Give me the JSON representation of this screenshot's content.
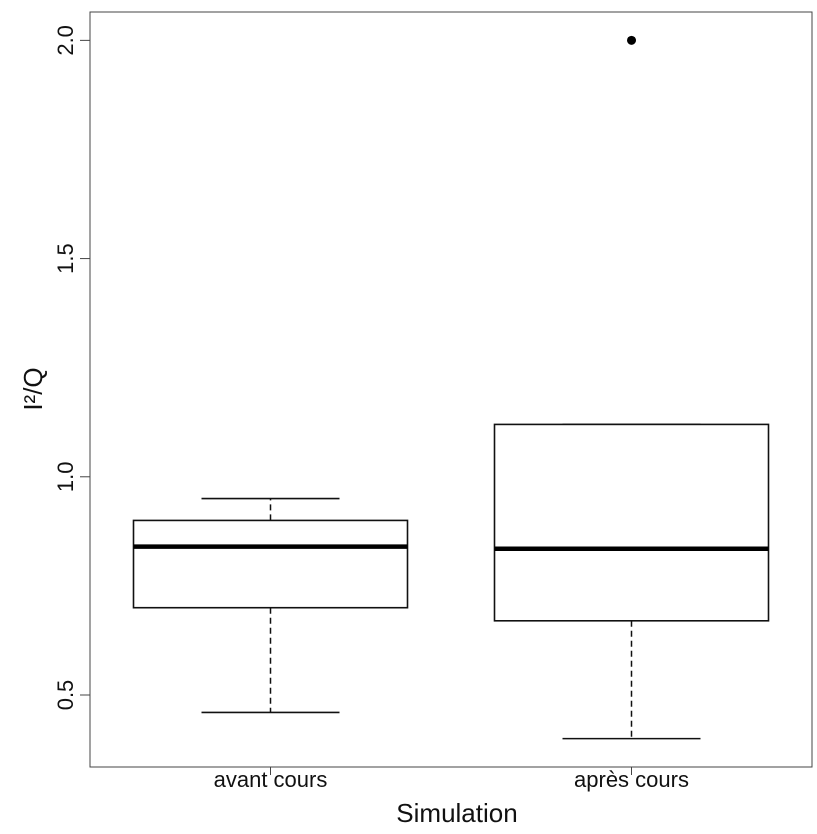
{
  "chart_data": {
    "type": "boxplot",
    "title": "",
    "xlabel": "Simulation",
    "ylabel": "I²/Q",
    "ylim": [
      0.335,
      2.065
    ],
    "yticks": [
      0.5,
      1.0,
      1.5,
      2.0
    ],
    "ytick_labels": [
      "0.5",
      "1.0",
      "1.5",
      "2.0"
    ],
    "grid": false,
    "legend": "none",
    "categories": [
      "avant cours",
      "après cours"
    ],
    "boxes": [
      {
        "category": "avant cours",
        "whisker_low": 0.46,
        "q1": 0.7,
        "median": 0.84,
        "q3": 0.9,
        "whisker_high": 0.95,
        "outliers": []
      },
      {
        "category": "après cours",
        "whisker_low": 0.4,
        "q1": 0.67,
        "median": 0.835,
        "q3": 1.12,
        "whisker_high": 1.12,
        "outliers": [
          2.0
        ]
      }
    ],
    "colors": {
      "box_fill": "#ffffff",
      "stroke": "#111111",
      "outlier": "#000000"
    }
  }
}
